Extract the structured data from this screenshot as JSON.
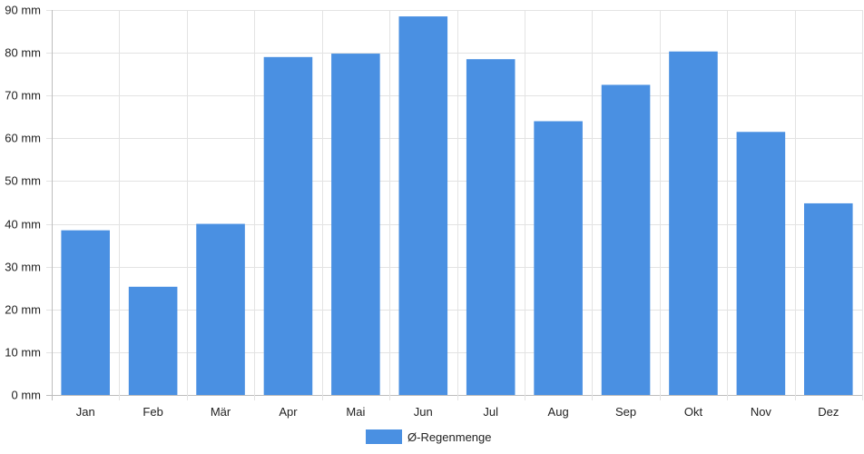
{
  "chart_data": {
    "type": "bar",
    "categories": [
      "Jan",
      "Feb",
      "Mär",
      "Apr",
      "Mai",
      "Jun",
      "Jul",
      "Aug",
      "Sep",
      "Okt",
      "Nov",
      "Dez"
    ],
    "series": [
      {
        "name": "Ø-Regenmenge",
        "values": [
          38.5,
          25.3,
          40,
          79,
          79.8,
          88.5,
          78.5,
          64,
          72.5,
          80.3,
          61.5,
          44.8
        ],
        "color": "#4a90e2"
      }
    ],
    "y_ticks": [
      "0 mm",
      "10 mm",
      "20 mm",
      "30 mm",
      "40 mm",
      "50 mm",
      "60 mm",
      "70 mm",
      "80 mm",
      "90 mm"
    ],
    "ylim": [
      0,
      90
    ],
    "grid": true,
    "legend_position": "bottom-center"
  }
}
